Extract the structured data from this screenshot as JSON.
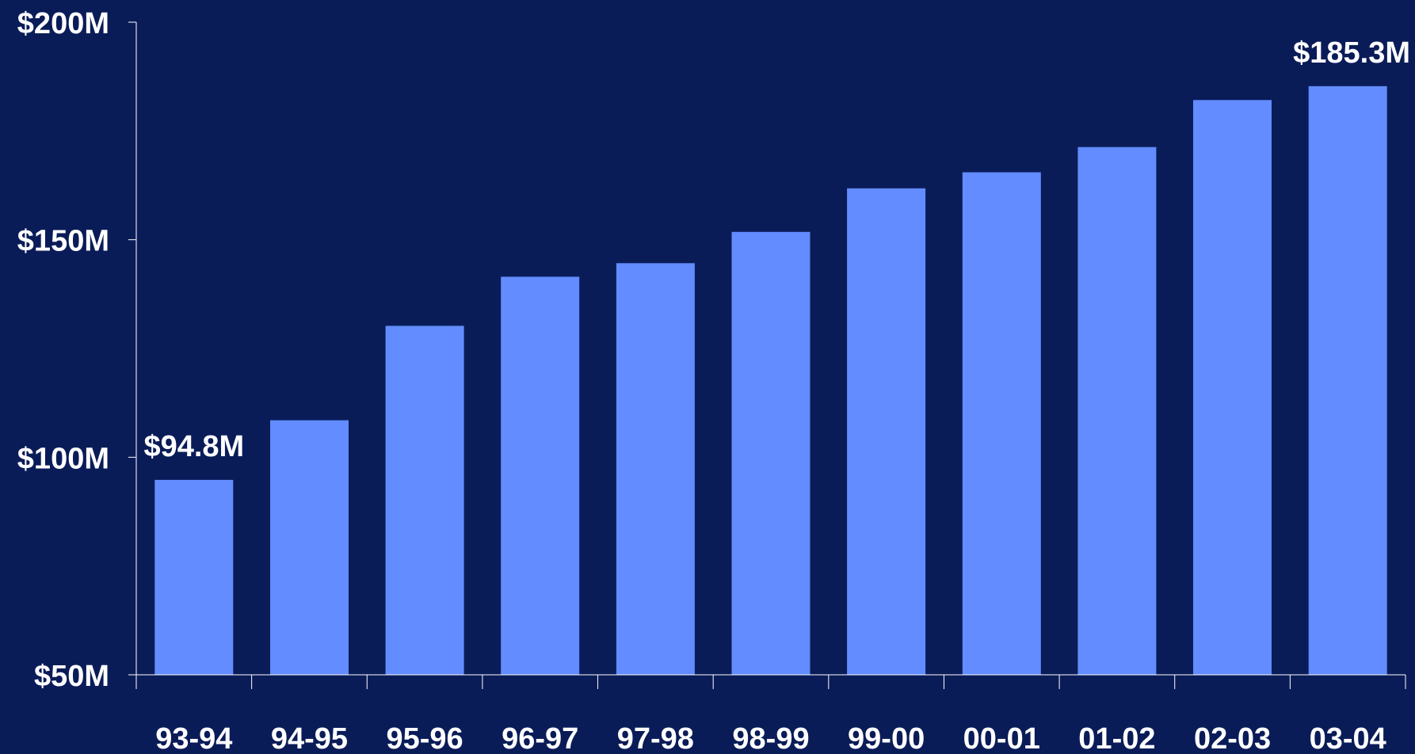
{
  "chart_data": {
    "type": "bar",
    "title": "",
    "xlabel": "",
    "ylabel": "",
    "categories": [
      "93-94",
      "94-95",
      "95-96",
      "96-97",
      "97-98",
      "98-99",
      "99-00",
      "00-01",
      "01-02",
      "02-03",
      "03-04"
    ],
    "values": [
      94.8,
      108.5,
      130.2,
      141.5,
      144.6,
      151.8,
      161.8,
      165.5,
      171.3,
      182.1,
      185.3
    ],
    "ylim": [
      50,
      200
    ],
    "yticks": [
      {
        "value": 50,
        "label": "$50M"
      },
      {
        "value": 100,
        "label": "$100M"
      },
      {
        "value": 150,
        "label": "$150M"
      },
      {
        "value": 200,
        "label": "$200M"
      }
    ],
    "data_labels": [
      {
        "index": 0,
        "text": "$94.8M"
      },
      {
        "index": 10,
        "text": "$185.3M"
      }
    ],
    "grid": false,
    "legend": "none",
    "colors": {
      "background": "#0a1c58",
      "bar": "#628cff",
      "axis": "#ffffff",
      "text": "#ffffff"
    }
  }
}
